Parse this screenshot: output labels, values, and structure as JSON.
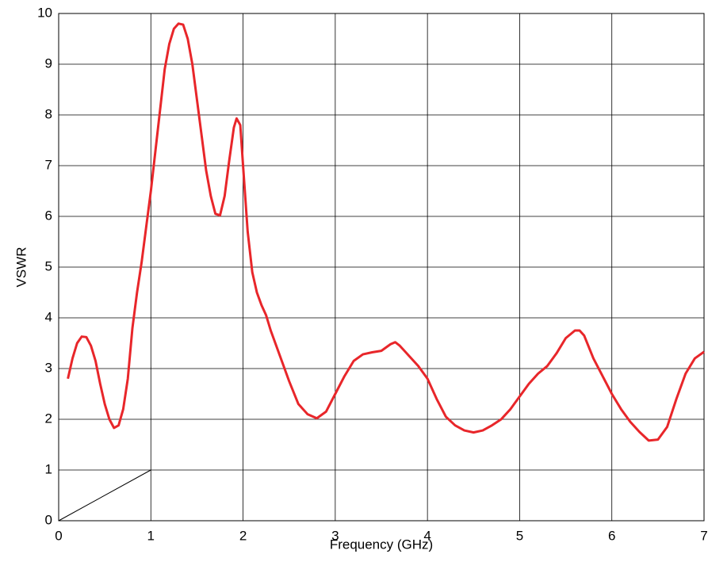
{
  "chart_data": {
    "type": "line",
    "x_label": "Frequency (GHz)",
    "y_label": "VSWR",
    "xlim": [
      0,
      7
    ],
    "ylim": [
      0,
      10
    ],
    "xticks": [
      0,
      1,
      2,
      3,
      4,
      5,
      6,
      7
    ],
    "yticks": [
      0,
      1,
      2,
      3,
      4,
      5,
      6,
      7,
      8,
      9,
      10
    ],
    "grid": true,
    "series": [
      {
        "color": "#e8262a",
        "x": [
          0.1,
          0.15,
          0.2,
          0.25,
          0.3,
          0.35,
          0.4,
          0.45,
          0.5,
          0.55,
          0.6,
          0.65,
          0.7,
          0.75,
          0.8,
          0.85,
          0.9,
          0.95,
          1.0,
          1.05,
          1.1,
          1.15,
          1.2,
          1.25,
          1.3,
          1.35,
          1.4,
          1.45,
          1.5,
          1.55,
          1.6,
          1.65,
          1.7,
          1.75,
          1.8,
          1.85,
          1.9,
          1.93,
          1.97,
          2.0,
          2.05,
          2.1,
          2.15,
          2.2,
          2.25,
          2.3,
          2.4,
          2.5,
          2.6,
          2.7,
          2.8,
          2.9,
          3.0,
          3.1,
          3.2,
          3.3,
          3.4,
          3.5,
          3.6,
          3.65,
          3.7,
          3.8,
          3.9,
          4.0,
          4.1,
          4.2,
          4.3,
          4.4,
          4.5,
          4.6,
          4.7,
          4.8,
          4.9,
          5.0,
          5.1,
          5.2,
          5.3,
          5.4,
          5.5,
          5.6,
          5.65,
          5.7,
          5.8,
          5.9,
          6.0,
          6.1,
          6.2,
          6.3,
          6.4,
          6.5,
          6.6,
          6.7,
          6.8,
          6.9,
          7.0
        ],
        "values": [
          2.8,
          3.2,
          3.5,
          3.63,
          3.62,
          3.45,
          3.15,
          2.7,
          2.3,
          2.0,
          1.83,
          1.88,
          2.2,
          2.8,
          3.8,
          4.5,
          5.1,
          5.8,
          6.5,
          7.3,
          8.1,
          8.9,
          9.4,
          9.7,
          9.8,
          9.78,
          9.5,
          9.0,
          8.3,
          7.6,
          6.9,
          6.4,
          6.05,
          6.02,
          6.4,
          7.1,
          7.75,
          7.93,
          7.8,
          7.0,
          5.7,
          4.9,
          4.5,
          4.25,
          4.05,
          3.75,
          3.25,
          2.75,
          2.3,
          2.1,
          2.02,
          2.15,
          2.5,
          2.85,
          3.15,
          3.28,
          3.32,
          3.35,
          3.48,
          3.52,
          3.45,
          3.25,
          3.05,
          2.8,
          2.4,
          2.05,
          1.88,
          1.78,
          1.74,
          1.78,
          1.88,
          2.0,
          2.2,
          2.45,
          2.7,
          2.9,
          3.05,
          3.3,
          3.6,
          3.75,
          3.75,
          3.65,
          3.2,
          2.85,
          2.5,
          2.2,
          1.95,
          1.75,
          1.58,
          1.6,
          1.85,
          2.4,
          2.9,
          3.2,
          3.33
        ]
      },
      {
        "color": "#000000",
        "x": [
          0,
          1
        ],
        "values": [
          0,
          1
        ]
      }
    ]
  }
}
